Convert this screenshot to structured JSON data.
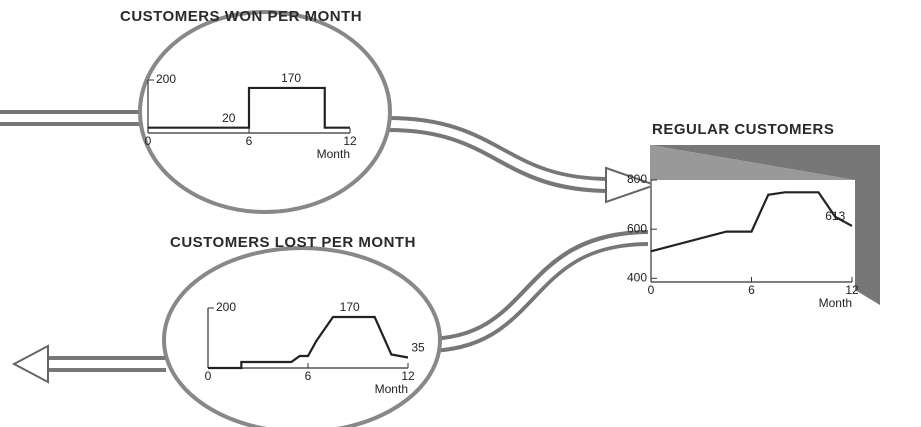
{
  "chart_data": [
    {
      "type": "line",
      "title": "CUSTOMERS WON PER MONTH",
      "xlabel": "Month",
      "x": [
        0,
        6,
        6,
        10.5,
        10.5,
        12
      ],
      "values": [
        20,
        20,
        170,
        170,
        20,
        20
      ],
      "color": "#222",
      "xlim": [
        0,
        12
      ],
      "xticks": [
        0,
        6,
        12
      ],
      "ylim": [
        0,
        200
      ],
      "yticks": [
        200
      ],
      "annotations": [
        {
          "x": 4.8,
          "y": 20,
          "label": "20"
        },
        {
          "x": 8.5,
          "y": 170,
          "label": "170"
        }
      ]
    },
    {
      "type": "line",
      "title": "REGULAR CUSTOMERS",
      "xlabel": "Month",
      "x": [
        0,
        4.5,
        6,
        7,
        8,
        10,
        11,
        12
      ],
      "values": [
        510,
        590,
        590,
        740,
        750,
        750,
        650,
        613
      ],
      "color": "#222",
      "xlim": [
        0,
        12
      ],
      "xticks": [
        0,
        6,
        12
      ],
      "ylim": [
        385,
        800
      ],
      "yticks": [
        400,
        600,
        800
      ],
      "annotations": [
        {
          "x": 11,
          "y": 613,
          "label": "613"
        }
      ]
    },
    {
      "type": "line",
      "title": "CUSTOMERS LOST PER MONTH",
      "xlabel": "Month",
      "x": [
        0,
        2,
        2,
        5,
        5.5,
        6,
        6.5,
        7.5,
        10,
        11,
        12
      ],
      "values": [
        0,
        0,
        20,
        20,
        40,
        40,
        90,
        170,
        170,
        45,
        35
      ],
      "color": "#222",
      "xlim": [
        0,
        12
      ],
      "xticks": [
        0,
        6,
        12
      ],
      "ylim": [
        0,
        200
      ],
      "yticks": [
        200
      ],
      "annotations": [
        {
          "x": 8.5,
          "y": 170,
          "label": "170"
        },
        {
          "x": 12.6,
          "y": 35,
          "label": "35"
        }
      ]
    }
  ]
}
